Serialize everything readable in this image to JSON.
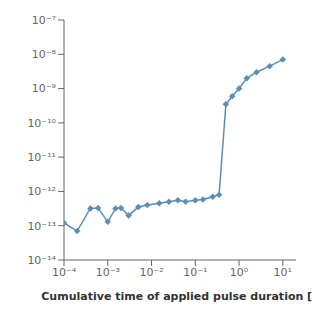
{
  "chart_data": {
    "type": "line",
    "xlabel": "Cumulative time of applied pulse duration [s",
    "log": true,
    "grid": false,
    "color": "#5b8db8",
    "marker": "diamond",
    "line_style": "solid",
    "x": [
      0.0001,
      0.0002,
      0.0004,
      0.0006,
      0.001,
      0.0015,
      0.002,
      0.003,
      0.005,
      0.008,
      0.015,
      0.025,
      0.04,
      0.06,
      0.1,
      0.15,
      0.25,
      0.35,
      0.5,
      0.7,
      1.0,
      1.5,
      2.5,
      5.0,
      10.0
    ],
    "values": [
      1.2e-13,
      7e-14,
      3.2e-13,
      3.3e-13,
      1.3e-13,
      3.2e-13,
      3.3e-13,
      2e-13,
      3.5e-13,
      4e-13,
      4.5e-13,
      5e-13,
      5.5e-13,
      5e-13,
      5.5e-13,
      5.8e-13,
      7e-13,
      8e-13,
      3.5e-10,
      6e-10,
      1e-09,
      2e-09,
      3e-09,
      4.5e-09,
      7e-09
    ],
    "xlim": [
      0.0001,
      20
    ],
    "ylim": [
      1e-14,
      1e-07
    ],
    "xticks": [
      {
        "value": 0.0001,
        "label": "10⁻⁴"
      },
      {
        "value": 0.001,
        "label": "10⁻³"
      },
      {
        "value": 0.01,
        "label": "10⁻²"
      },
      {
        "value": 0.1,
        "label": "10⁻¹"
      },
      {
        "value": 1,
        "label": "10⁰"
      },
      {
        "value": 10,
        "label": "10¹"
      }
    ],
    "yticks": [
      {
        "value": 1e-14,
        "label": "10⁻¹⁴"
      },
      {
        "value": 1e-13,
        "label": "10⁻¹³"
      },
      {
        "value": 1e-12,
        "label": "10⁻¹²"
      },
      {
        "value": 1e-11,
        "label": "10⁻¹¹"
      },
      {
        "value": 1e-10,
        "label": "10⁻¹⁰"
      },
      {
        "value": 1e-09,
        "label": "10⁻⁹"
      },
      {
        "value": 1e-08,
        "label": "10⁻⁸"
      },
      {
        "value": 1e-07,
        "label": "10⁻⁷"
      }
    ]
  }
}
